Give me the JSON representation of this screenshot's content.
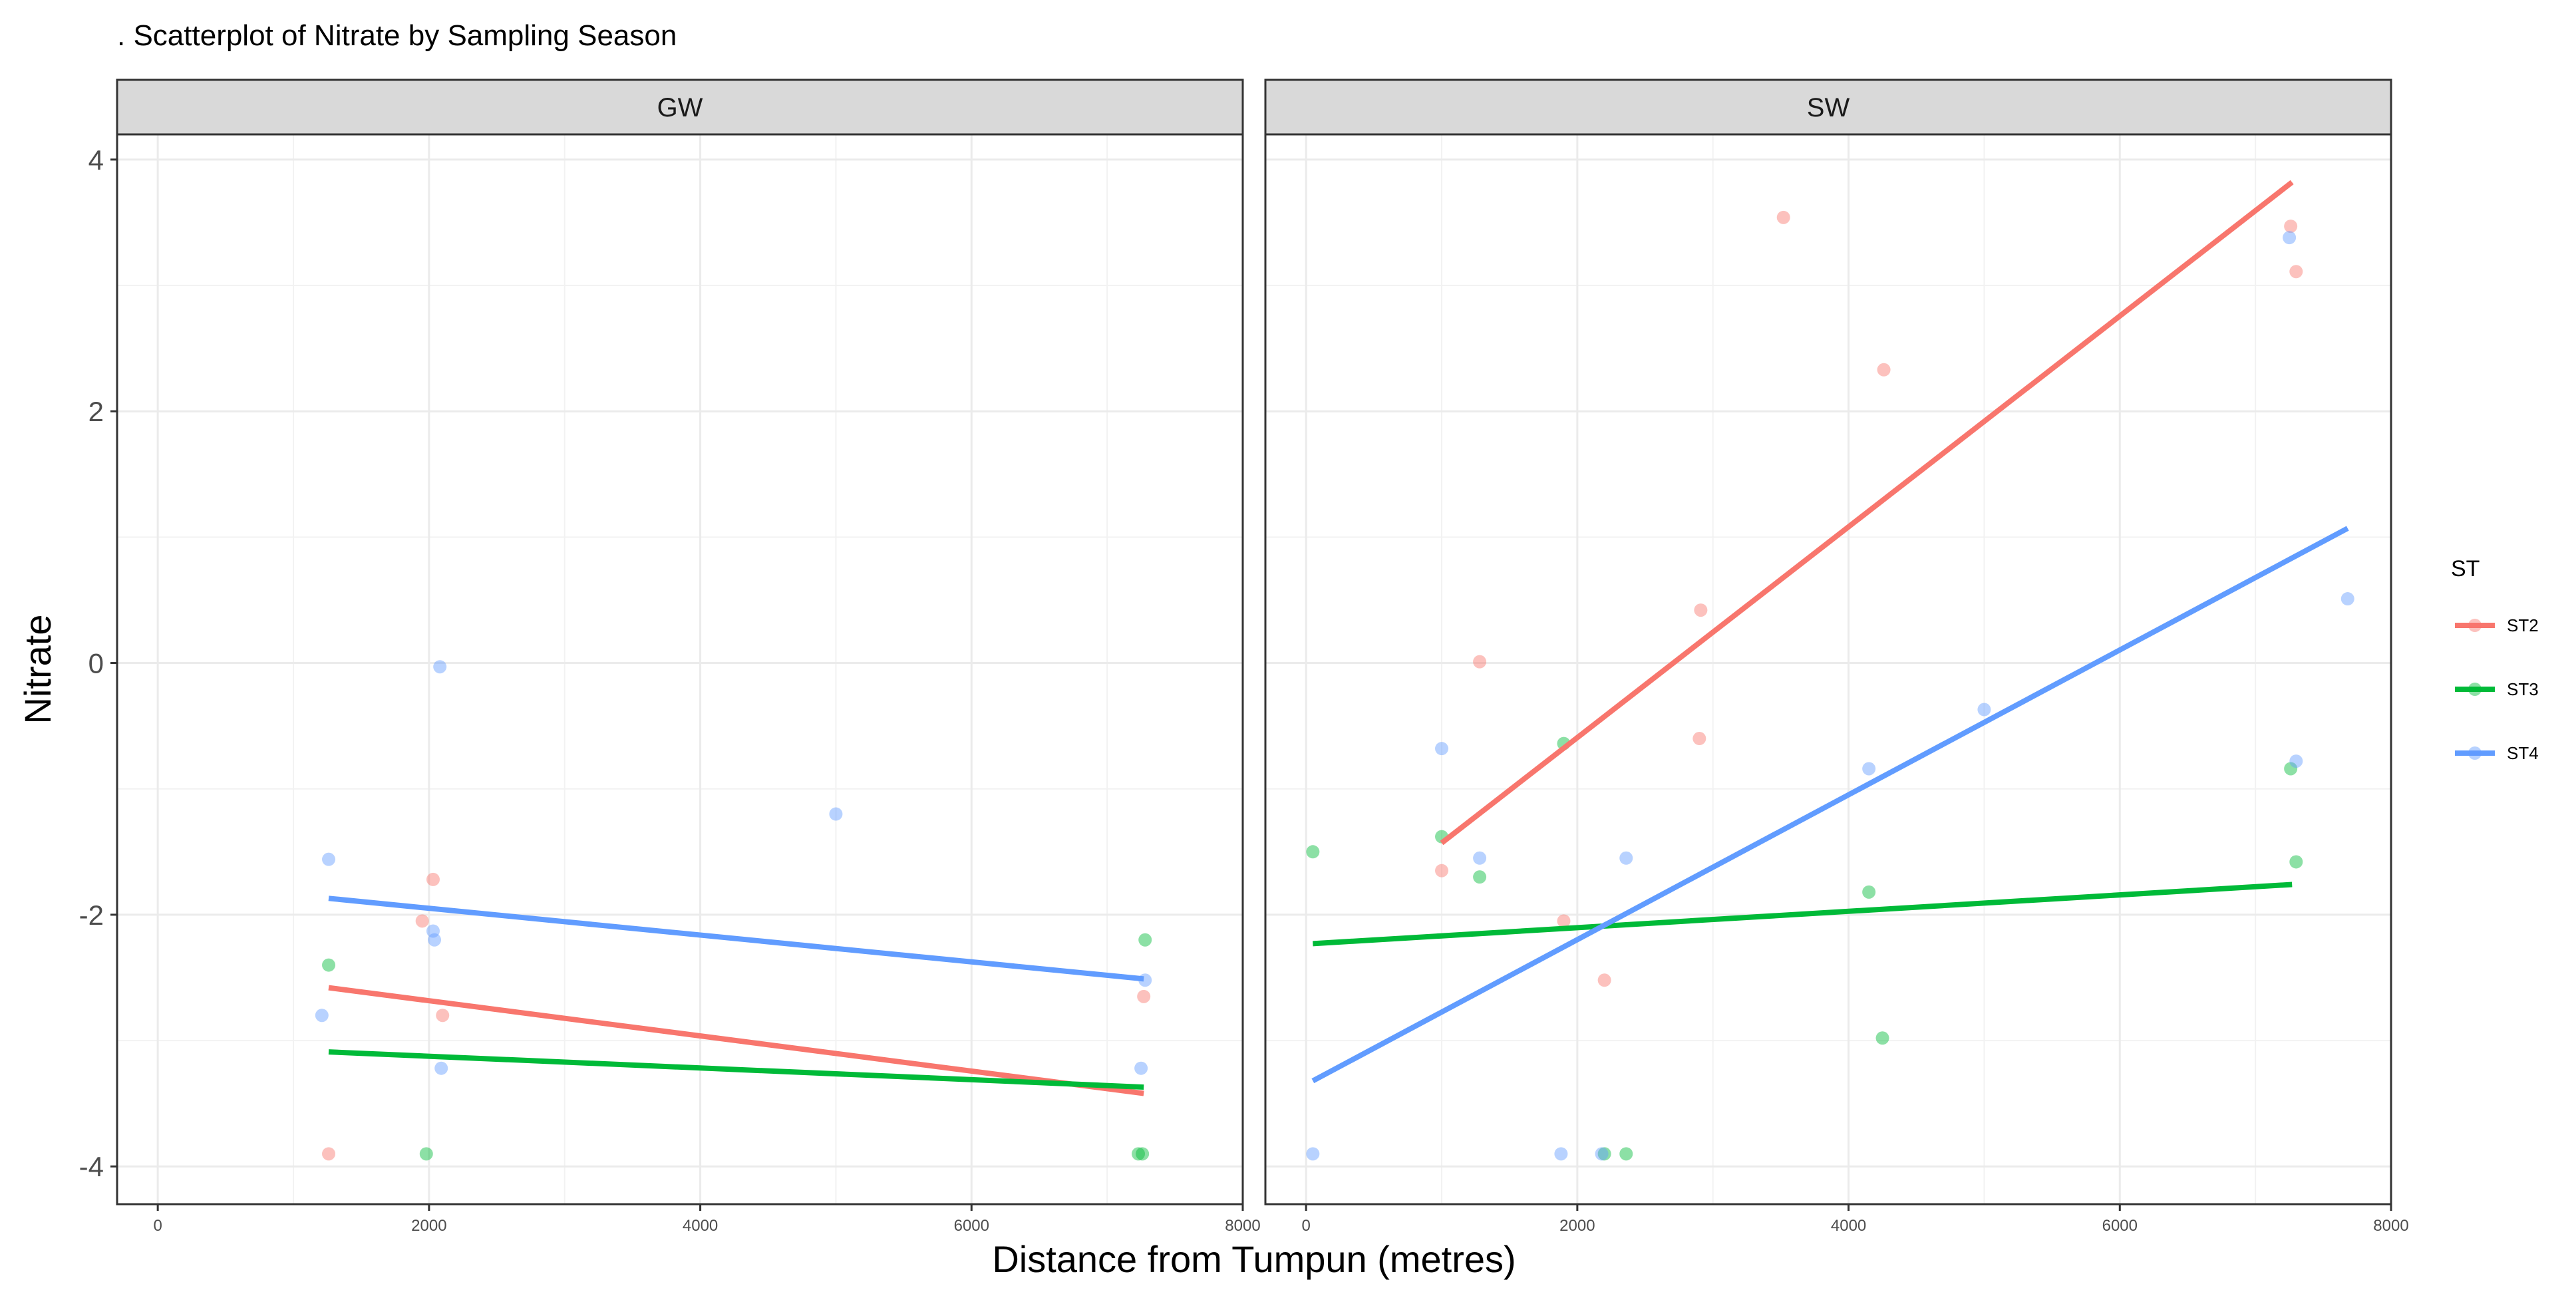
{
  "chart_data": {
    "type": "scatter",
    "title": ". Scatterplot of Nitrate by Sampling Season",
    "xlabel": "Distance from Tumpun (metres)",
    "ylabel": "Nitrate",
    "xlim": [
      -300,
      8000
    ],
    "ylim": [
      -4.3,
      4.2
    ],
    "x_ticks": [
      0,
      2000,
      4000,
      6000,
      8000
    ],
    "y_ticks": [
      -4,
      -2,
      0,
      2,
      4
    ],
    "grid": true,
    "legend": {
      "title": "ST",
      "position": "right",
      "entries": [
        {
          "name": "ST2",
          "color": "#F8766D"
        },
        {
          "name": "ST3",
          "color": "#00BA38"
        },
        {
          "name": "ST4",
          "color": "#619CFF"
        }
      ]
    },
    "panels": [
      {
        "name": "GW",
        "series": [
          {
            "name": "ST2",
            "color": "#F8766D",
            "points": [
              [
                1260,
                -3.9
              ],
              [
                1950,
                -2.05
              ],
              [
                2030,
                -1.72
              ],
              [
                2100,
                -2.8
              ],
              [
                7270,
                -2.65
              ]
            ],
            "fit": [
              [
                1260,
                -2.58
              ],
              [
                7270,
                -3.42
              ]
            ]
          },
          {
            "name": "ST3",
            "color": "#00BA38",
            "points": [
              [
                1260,
                -2.4
              ],
              [
                1980,
                -3.9
              ],
              [
                7230,
                -3.9
              ],
              [
                7260,
                -3.9
              ],
              [
                7280,
                -2.2
              ]
            ],
            "fit": [
              [
                1260,
                -3.09
              ],
              [
                7270,
                -3.37
              ]
            ]
          },
          {
            "name": "ST4",
            "color": "#619CFF",
            "points": [
              [
                1210,
                -2.8
              ],
              [
                1260,
                -1.56
              ],
              [
                2030,
                -2.13
              ],
              [
                2040,
                -2.2
              ],
              [
                2080,
                -0.03
              ],
              [
                2090,
                -3.22
              ],
              [
                5000,
                -1.2
              ],
              [
                7250,
                -3.22
              ],
              [
                7280,
                -2.52
              ]
            ],
            "fit": [
              [
                1260,
                -1.87
              ],
              [
                7270,
                -2.51
              ]
            ]
          }
        ]
      },
      {
        "name": "SW",
        "series": [
          {
            "name": "ST2",
            "color": "#F8766D",
            "points": [
              [
                1000,
                -1.65
              ],
              [
                1280,
                0.01
              ],
              [
                1900,
                -2.05
              ],
              [
                2200,
                -2.52
              ],
              [
                2900,
                -0.6
              ],
              [
                2910,
                0.42
              ],
              [
                3520,
                3.54
              ],
              [
                4260,
                2.33
              ],
              [
                7260,
                3.47
              ],
              [
                7300,
                3.11
              ]
            ],
            "fit": [
              [
                1000,
                -1.43
              ],
              [
                7270,
                3.82
              ]
            ]
          },
          {
            "name": "ST3",
            "color": "#00BA38",
            "points": [
              [
                50,
                -1.5
              ],
              [
                1000,
                -1.38
              ],
              [
                1280,
                -1.7
              ],
              [
                1900,
                -0.64
              ],
              [
                2200,
                -3.9
              ],
              [
                2360,
                -3.9
              ],
              [
                4150,
                -1.82
              ],
              [
                4250,
                -2.98
              ],
              [
                7260,
                -0.84
              ],
              [
                7300,
                -1.58
              ]
            ],
            "fit": [
              [
                50,
                -2.23
              ],
              [
                7270,
                -1.76
              ]
            ]
          },
          {
            "name": "ST4",
            "color": "#619CFF",
            "points": [
              [
                50,
                -3.9
              ],
              [
                1000,
                -0.68
              ],
              [
                1280,
                -1.55
              ],
              [
                1880,
                -3.9
              ],
              [
                2180,
                -3.9
              ],
              [
                2360,
                -1.55
              ],
              [
                4150,
                -0.84
              ],
              [
                5000,
                -0.37
              ],
              [
                7250,
                3.38
              ],
              [
                7300,
                -0.78
              ],
              [
                7680,
                0.51
              ]
            ],
            "fit": [
              [
                50,
                -3.32
              ],
              [
                7680,
                1.07
              ]
            ]
          }
        ]
      }
    ]
  }
}
